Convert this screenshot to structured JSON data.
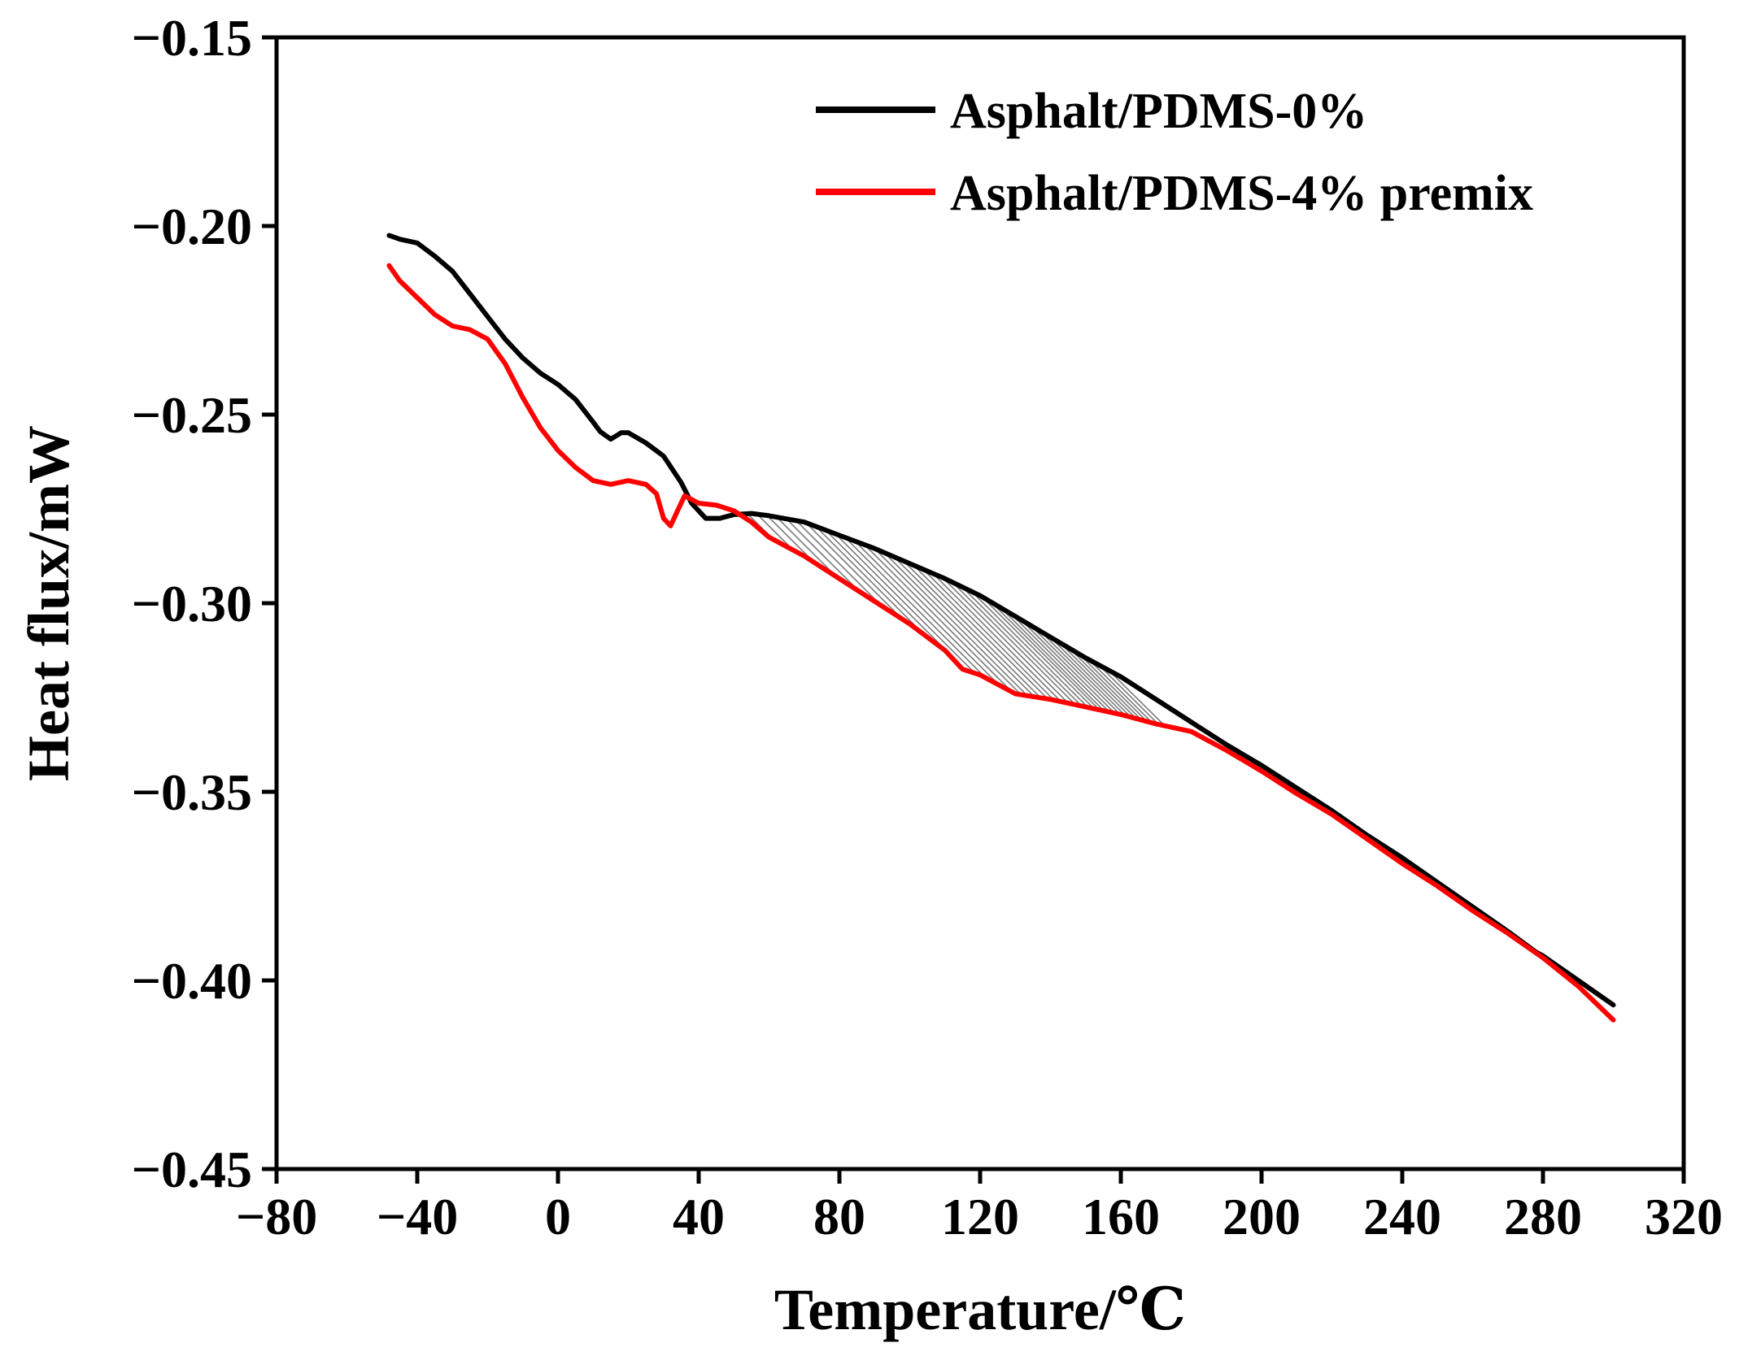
{
  "chart_data": {
    "type": "line",
    "title": "",
    "xlabel": "Temperature/℃",
    "ylabel": "Heat flux/mW",
    "xlim": [
      -80,
      320
    ],
    "ylim": [
      -0.45,
      -0.15
    ],
    "x_ticks": [
      -80,
      -40,
      0,
      40,
      80,
      120,
      160,
      200,
      240,
      280,
      320
    ],
    "y_ticks": [
      -0.45,
      -0.4,
      -0.35,
      -0.3,
      -0.25,
      -0.2,
      -0.15
    ],
    "x_tick_labels": [
      "−80",
      "−40",
      "0",
      "40",
      "80",
      "120",
      "160",
      "200",
      "240",
      "280",
      "320"
    ],
    "y_tick_labels": [
      "−0.45",
      "−0.40",
      "−0.35",
      "−0.30",
      "−0.25",
      "−0.20",
      "−0.15"
    ],
    "grid": false,
    "legend_position": "top-right",
    "hatched_region": {
      "x_range": [
        52,
        173
      ],
      "between": [
        "Asphalt/PDMS-0%",
        "Asphalt/PDMS-4% premix"
      ]
    },
    "series": [
      {
        "name": "Asphalt/PDMS-0%",
        "color": "#000000",
        "x": [
          -48,
          -45,
          -40,
          -35,
          -30,
          -25,
          -20,
          -15,
          -10,
          -5,
          0,
          5,
          10,
          12,
          15,
          18,
          20,
          25,
          30,
          35,
          38,
          42,
          46,
          50,
          55,
          60,
          70,
          80,
          90,
          100,
          110,
          120,
          130,
          140,
          150,
          160,
          170,
          180,
          190,
          200,
          210,
          220,
          230,
          240,
          250,
          260,
          270,
          278,
          280,
          290,
          300
        ],
        "y": [
          -0.2025,
          -0.2035,
          -0.2045,
          -0.208,
          -0.212,
          -0.218,
          -0.224,
          -0.23,
          -0.235,
          -0.239,
          -0.242,
          -0.246,
          -0.252,
          -0.2545,
          -0.2565,
          -0.2548,
          -0.2548,
          -0.2575,
          -0.261,
          -0.268,
          -0.2735,
          -0.2775,
          -0.2775,
          -0.2765,
          -0.2762,
          -0.2768,
          -0.2785,
          -0.282,
          -0.2855,
          -0.2895,
          -0.2935,
          -0.298,
          -0.3035,
          -0.309,
          -0.3145,
          -0.3195,
          -0.3255,
          -0.3315,
          -0.3375,
          -0.343,
          -0.349,
          -0.355,
          -0.3615,
          -0.3675,
          -0.374,
          -0.3805,
          -0.387,
          -0.3925,
          -0.3935,
          -0.4,
          -0.4065
        ]
      },
      {
        "name": "Asphalt/PDMS-4% premix",
        "color": "#ff0000",
        "x": [
          -48,
          -45,
          -40,
          -35,
          -30,
          -25,
          -20,
          -15,
          -10,
          -5,
          0,
          5,
          10,
          15,
          20,
          25,
          28,
          30,
          32,
          34,
          36,
          38,
          40,
          45,
          50,
          55,
          60,
          70,
          80,
          90,
          100,
          110,
          115,
          120,
          130,
          140,
          150,
          160,
          170,
          180,
          190,
          200,
          210,
          220,
          230,
          240,
          250,
          260,
          270,
          280,
          290,
          300
        ],
        "y": [
          -0.2105,
          -0.2145,
          -0.219,
          -0.2235,
          -0.2265,
          -0.2275,
          -0.23,
          -0.2365,
          -0.2455,
          -0.2535,
          -0.2595,
          -0.264,
          -0.2675,
          -0.2685,
          -0.2675,
          -0.2685,
          -0.271,
          -0.2775,
          -0.2795,
          -0.2755,
          -0.2715,
          -0.2725,
          -0.2735,
          -0.274,
          -0.2755,
          -0.2785,
          -0.2825,
          -0.2875,
          -0.2935,
          -0.2995,
          -0.3055,
          -0.3125,
          -0.3175,
          -0.319,
          -0.324,
          -0.3255,
          -0.3275,
          -0.3295,
          -0.332,
          -0.334,
          -0.339,
          -0.3445,
          -0.3505,
          -0.356,
          -0.3625,
          -0.369,
          -0.375,
          -0.3815,
          -0.3875,
          -0.394,
          -0.4015,
          -0.4105
        ]
      }
    ]
  }
}
